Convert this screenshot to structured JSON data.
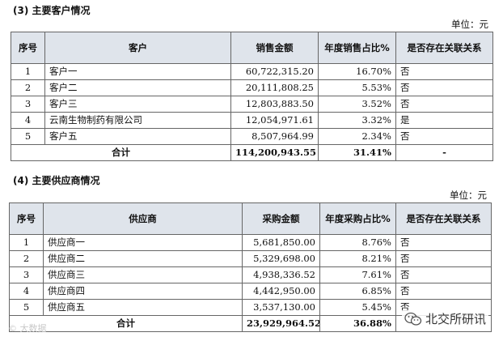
{
  "section3": {
    "heading": "(3) 主要客户情况",
    "unit": "单位：元",
    "headers": [
      "序号",
      "客户",
      "销售金额",
      "年度销售占比%",
      "是否存在关联关系"
    ],
    "rows": [
      {
        "no": "1",
        "name": "客户一",
        "amount": "60,722,315.20",
        "pct": "16.70%",
        "related": "否"
      },
      {
        "no": "2",
        "name": "客户二",
        "amount": "20,111,808.25",
        "pct": "5.53%",
        "related": "否"
      },
      {
        "no": "3",
        "name": "客户三",
        "amount": "12,803,883.50",
        "pct": "3.52%",
        "related": "否"
      },
      {
        "no": "4",
        "name": "云南生物制药有限公司",
        "amount": "12,054,971.61",
        "pct": "3.32%",
        "related": "是"
      },
      {
        "no": "5",
        "name": "客户五",
        "amount": "8,507,964.99",
        "pct": "2.34%",
        "related": "否"
      }
    ],
    "total": {
      "label": "合计",
      "amount": "114,200,943.55",
      "pct": "31.41%",
      "related": "-"
    }
  },
  "section4": {
    "heading": "(4) 主要供应商情况",
    "unit": "单位：元",
    "headers": [
      "序号",
      "供应商",
      "采购金额",
      "年度采购占比%",
      "是否存在关联关系"
    ],
    "rows": [
      {
        "no": "1",
        "name": "供应商一",
        "amount": "5,681,850.00",
        "pct": "8.76%",
        "related": "否"
      },
      {
        "no": "2",
        "name": "供应商二",
        "amount": "5,329,698.00",
        "pct": "8.21%",
        "related": "否"
      },
      {
        "no": "3",
        "name": "供应商三",
        "amount": "4,938,336.52",
        "pct": "7.61%",
        "related": "否"
      },
      {
        "no": "4",
        "name": "供应商四",
        "amount": "4,442,950.00",
        "pct": "6.85%",
        "related": "否"
      },
      {
        "no": "5",
        "name": "供应商五",
        "amount": "3,537,130.00",
        "pct": "5.45%",
        "related": "否"
      }
    ],
    "total": {
      "label": "合计",
      "amount": "23,929,964.52",
      "pct": "36.88%",
      "related": ""
    }
  },
  "watermarks": {
    "left": "© 大数据",
    "right": "北交所研讯",
    "right_icon": "wechat-icon"
  },
  "colors": {
    "header_bg": "#dfe4eb",
    "border": "#666666"
  }
}
